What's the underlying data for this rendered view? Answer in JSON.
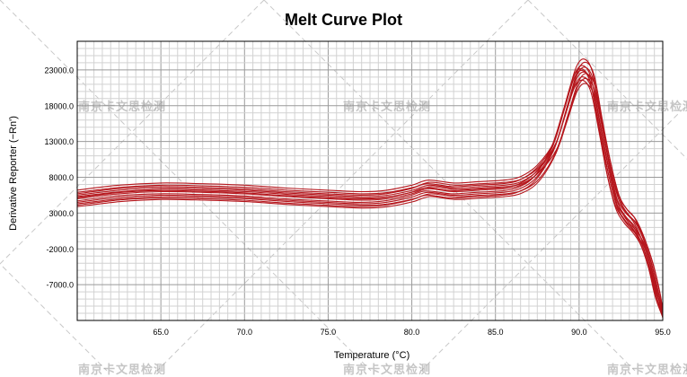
{
  "chart_data": {
    "type": "line",
    "title": "Melt Curve Plot",
    "xlabel": "Temperature (°C)",
    "ylabel": "Derivative Reporter (−Rn')",
    "xlim": [
      60.0,
      95.0
    ],
    "ylim": [
      -12000,
      27000
    ],
    "xticks": [
      65.0,
      70.0,
      75.0,
      80.0,
      85.0,
      90.0,
      95.0
    ],
    "xtick_labels": [
      "65.0",
      "70.0",
      "75.0",
      "80.0",
      "85.0",
      "90.0",
      "95.0"
    ],
    "yticks": [
      23000,
      18000,
      13000,
      8000,
      3000,
      -2000,
      -7000
    ],
    "ytick_labels": [
      "23000.0",
      "18000.0",
      "13000.0",
      "8000.0",
      "3000.0",
      "-2000.0",
      "-7000.0"
    ],
    "grid": true,
    "line_color": "#b5161c",
    "reference_curve": {
      "x": [
        60.0,
        62.5,
        65.0,
        67.5,
        70.0,
        72.5,
        75.0,
        77.0,
        78.5,
        80.0,
        81.0,
        82.5,
        84.0,
        85.5,
        86.5,
        87.5,
        88.5,
        89.2,
        89.8,
        90.3,
        90.8,
        91.3,
        91.8,
        92.3,
        92.8,
        93.3,
        93.8,
        94.3,
        94.7,
        95.0
      ],
      "y": [
        5000,
        5700,
        6000,
        5900,
        5700,
        5300,
        5000,
        4800,
        5000,
        5700,
        6400,
        6000,
        6200,
        6400,
        6900,
        8500,
        12000,
        17000,
        21500,
        22700,
        21000,
        15000,
        9000,
        4500,
        2500,
        1200,
        -1000,
        -4500,
        -8500,
        -11000
      ]
    },
    "series": [
      {
        "dy": 0,
        "dx": 0.0,
        "sy": 1.0
      },
      {
        "dy": 500,
        "dx": 0.05,
        "sy": 1.03
      },
      {
        "dy": -500,
        "dx": -0.05,
        "sy": 0.97
      },
      {
        "dy": 900,
        "dx": 0.1,
        "sy": 1.06
      },
      {
        "dy": -900,
        "dx": -0.1,
        "sy": 0.95
      },
      {
        "dy": 300,
        "dx": 0.15,
        "sy": 0.99
      },
      {
        "dy": -300,
        "dx": -0.15,
        "sy": 1.02
      },
      {
        "dy": 1200,
        "dx": 0.0,
        "sy": 1.08
      },
      {
        "dy": -1100,
        "dx": 0.08,
        "sy": 0.93
      },
      {
        "dy": 700,
        "dx": -0.08,
        "sy": 1.04
      },
      {
        "dy": -700,
        "dx": 0.12,
        "sy": 0.96
      },
      {
        "dy": 150,
        "dx": -0.12,
        "sy": 1.01
      }
    ]
  },
  "watermark_text": "南京卡文思检测"
}
